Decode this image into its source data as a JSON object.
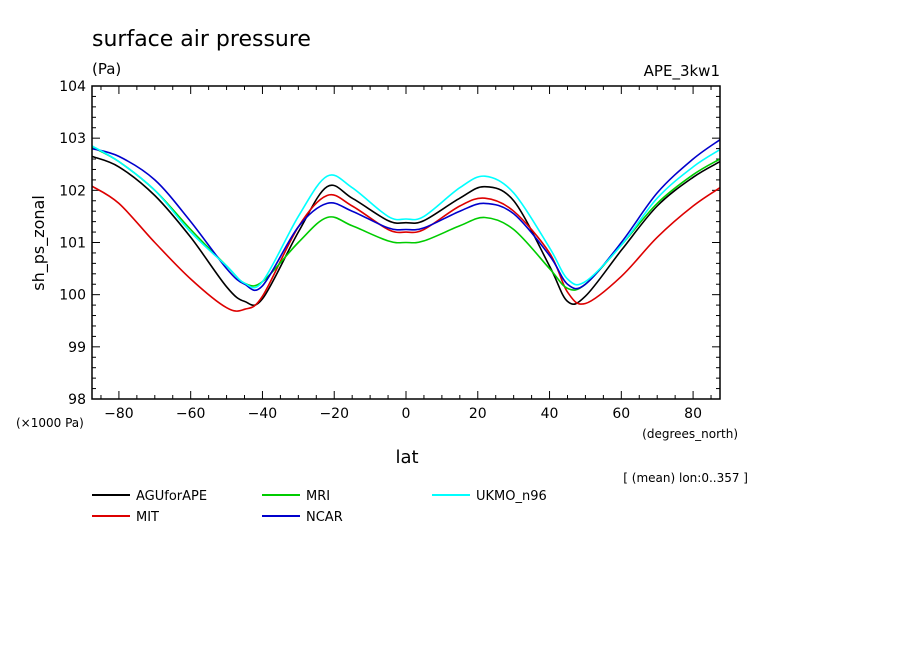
{
  "chart_data": {
    "type": "line",
    "title": "surface air pressure",
    "units": "(Pa)",
    "experiment": "APE_3kw1",
    "xlabel": "lat",
    "xlabel_units": "(degrees_north)",
    "ylabel": "sh_ps_zonal",
    "y_scale_note": "(×1000 Pa)",
    "footnote": "[ (mean) lon:0..357 ]",
    "xlim": [
      -87.5,
      87.5
    ],
    "ylim": [
      98,
      104
    ],
    "x_ticks": [
      -80,
      -60,
      -40,
      -20,
      0,
      20,
      40,
      60,
      80
    ],
    "x_tick_labels": [
      "−80",
      "−60",
      "−40",
      "−20",
      "0",
      "20",
      "40",
      "60",
      "80"
    ],
    "y_ticks": [
      98,
      99,
      100,
      101,
      102,
      103,
      104
    ],
    "y_tick_labels": [
      "98",
      "99",
      "100",
      "101",
      "102",
      "103",
      "104"
    ],
    "grid": false,
    "legend_position": "bottom",
    "x": [
      -87.5,
      -80,
      -70,
      -60,
      -50,
      -45,
      -40,
      -30,
      -22,
      -15,
      -5,
      0,
      5,
      15,
      22,
      30,
      40,
      45,
      50,
      60,
      70,
      80,
      87.5
    ],
    "series": [
      {
        "name": "AGUforAPE",
        "color": "#000000",
        "values": [
          102.65,
          102.45,
          101.9,
          101.1,
          100.15,
          99.87,
          99.92,
          101.2,
          102.07,
          101.85,
          101.42,
          101.38,
          101.42,
          101.85,
          102.07,
          101.8,
          100.55,
          99.87,
          99.97,
          100.85,
          101.7,
          102.25,
          102.55
        ]
      },
      {
        "name": "MIT",
        "color": "#dd0000",
        "values": [
          102.08,
          101.75,
          101.0,
          100.3,
          99.75,
          99.72,
          99.97,
          101.3,
          101.9,
          101.7,
          101.25,
          101.2,
          101.25,
          101.7,
          101.85,
          101.6,
          100.8,
          100.05,
          99.83,
          100.35,
          101.1,
          101.7,
          102.05
        ]
      },
      {
        "name": "MRI",
        "color": "#00cc00",
        "values": [
          102.83,
          102.55,
          102.0,
          101.25,
          100.55,
          100.22,
          100.25,
          101.0,
          101.48,
          101.32,
          101.03,
          101.0,
          101.03,
          101.32,
          101.48,
          101.25,
          100.5,
          100.12,
          100.2,
          100.95,
          101.75,
          102.3,
          102.6
        ]
      },
      {
        "name": "NCAR",
        "color": "#0000cc",
        "values": [
          102.8,
          102.65,
          102.2,
          101.4,
          100.5,
          100.2,
          100.17,
          101.3,
          101.75,
          101.6,
          101.28,
          101.25,
          101.28,
          101.6,
          101.75,
          101.55,
          100.75,
          100.2,
          100.2,
          101.0,
          101.95,
          102.6,
          102.97
        ]
      },
      {
        "name": "UKMO_n96",
        "color": "#00ffff",
        "values": [
          102.85,
          102.55,
          102.0,
          101.2,
          100.55,
          100.22,
          100.25,
          101.5,
          102.27,
          102.05,
          101.5,
          101.45,
          101.5,
          102.05,
          102.27,
          101.95,
          100.9,
          100.3,
          100.25,
          100.95,
          101.85,
          102.45,
          102.78
        ]
      }
    ]
  }
}
